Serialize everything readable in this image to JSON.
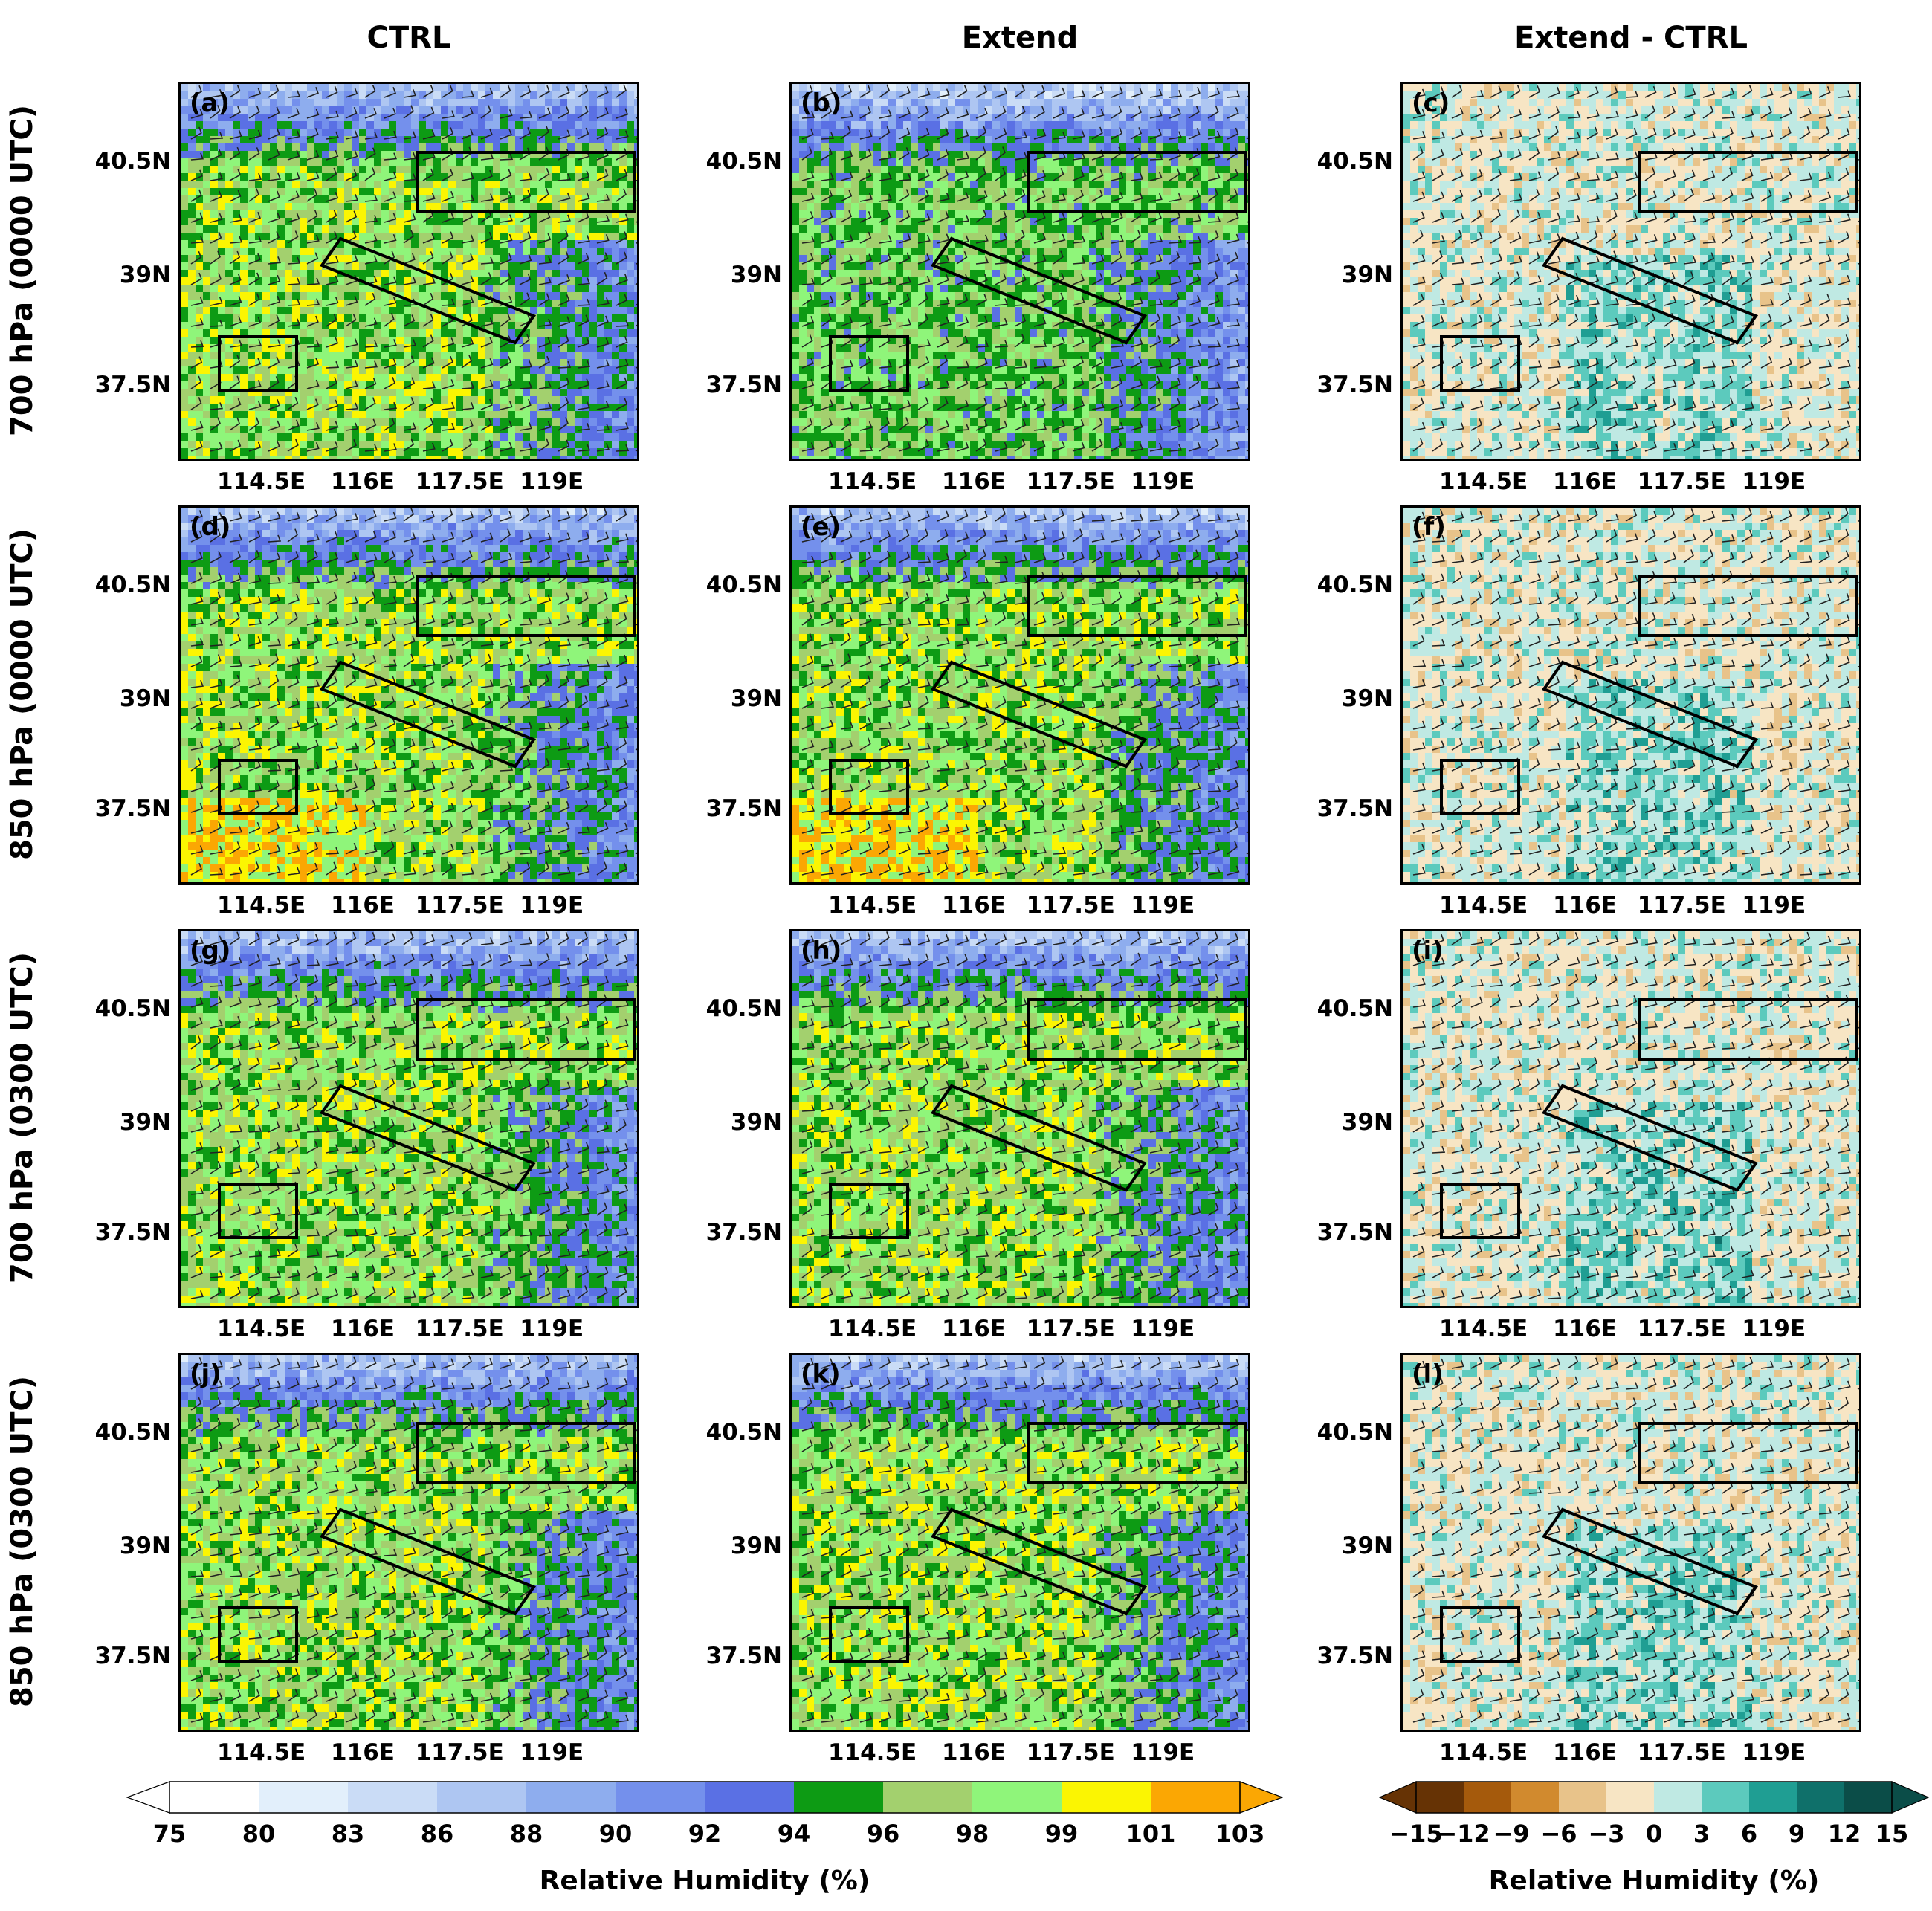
{
  "column_titles": [
    "CTRL",
    "Extend",
    "Extend - CTRL"
  ],
  "row_titles": [
    "700 hPa (0000 UTC)",
    "850 hPa (0000 UTC)",
    "700 hPa (0300 UTC)",
    "850 hPa (0300 UTC)"
  ],
  "panel_labels": [
    "(a)",
    "(b)",
    "(c)",
    "(d)",
    "(e)",
    "(f)",
    "(g)",
    "(h)",
    "(i)",
    "(j)",
    "(k)",
    "(l)"
  ],
  "y_tick_labels": [
    "40.5N",
    "39N",
    "37.5N"
  ],
  "x_tick_labels": [
    "114.5E",
    "116E",
    "117.5E",
    "119E"
  ],
  "colorbar_rh": {
    "title": "Relative Humidity (%)",
    "ticks": [
      "75",
      "80",
      "83",
      "86",
      "88",
      "90",
      "92",
      "94",
      "96",
      "98",
      "99",
      "101",
      "103"
    ],
    "colors": [
      "#ffffff",
      "#e2effb",
      "#cadcf6",
      "#aec6f2",
      "#8eadee",
      "#7490ec",
      "#5a70e4",
      "#0d9b14",
      "#a3d06e",
      "#8ff57a",
      "#fbf502",
      "#fba703"
    ]
  },
  "colorbar_diff": {
    "title": "Relative Humidity (%)",
    "ticks": [
      "−15",
      "−12",
      "−9",
      "−6",
      "−3",
      "0",
      "3",
      "6",
      "9",
      "12",
      "15"
    ],
    "colors": [
      "#663305",
      "#a55a0c",
      "#d18a2e",
      "#e8c38a",
      "#f7e5c4",
      "#bfe9e3",
      "#5ccabd",
      "#1f9e93",
      "#0f706a",
      "#0b4d48"
    ]
  }
}
